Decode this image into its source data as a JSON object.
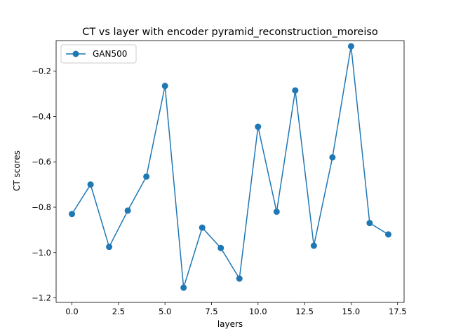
{
  "chart_data": {
    "type": "line",
    "title": "CT vs layer with encoder pyramid_reconstruction_moreiso",
    "xlabel": "layers",
    "ylabel": "CT scores",
    "xlim": [
      -0.85,
      17.85
    ],
    "ylim": [
      -1.22,
      -0.065
    ],
    "xticks": [
      0.0,
      2.5,
      5.0,
      7.5,
      10.0,
      12.5,
      15.0,
      17.5
    ],
    "xtick_labels": [
      "0.0",
      "2.5",
      "5.0",
      "7.5",
      "10.0",
      "12.5",
      "15.0",
      "17.5"
    ],
    "yticks": [
      -1.2,
      -1.0,
      -0.8,
      -0.6,
      -0.4,
      -0.2
    ],
    "ytick_labels": [
      "−1.2",
      "−1.0",
      "−0.8",
      "−0.6",
      "−0.4",
      "−0.2"
    ],
    "grid": false,
    "legend_position": "upper left",
    "series": [
      {
        "name": "GAN500",
        "color": "#1f77b4",
        "marker": "circle",
        "x": [
          0,
          1,
          2,
          3,
          4,
          5,
          6,
          7,
          8,
          9,
          10,
          11,
          12,
          13,
          14,
          15,
          16,
          17
        ],
        "y": [
          -0.83,
          -0.7,
          -0.975,
          -0.815,
          -0.665,
          -0.265,
          -1.155,
          -0.89,
          -0.98,
          -1.115,
          -0.445,
          -0.82,
          -0.285,
          -0.97,
          -0.58,
          -0.09,
          -0.87,
          -0.92
        ]
      }
    ]
  }
}
